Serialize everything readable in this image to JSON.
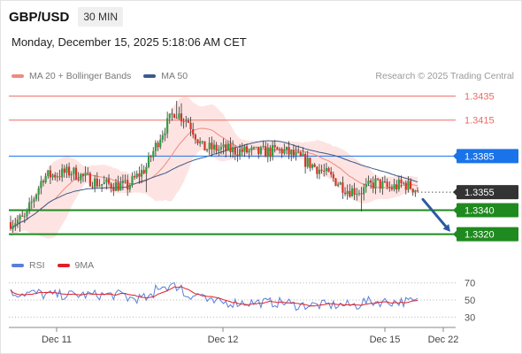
{
  "header": {
    "symbol": "GBP/USD",
    "timeframe": "30 MIN"
  },
  "timestamp": "Monday, December 15, 2025 5:18:06 AM CET",
  "credit": "Research © 2025 Trading Central",
  "legend": {
    "bollinger": {
      "label": "MA 20 + Bollinger Bands",
      "color": "#ef8a80"
    },
    "ma50": {
      "label": "MA 50",
      "color": "#3d5a8c"
    },
    "rsi": {
      "label": "RSI",
      "color": "#5b7fd6"
    },
    "rsi_ma": {
      "label": "9MA",
      "color": "#e0202a"
    }
  },
  "colors": {
    "up": "#2f9e44",
    "down": "#d73527",
    "resistance": "#ee6b63",
    "pivot": "#1a73e8",
    "support": "#1f8a1f",
    "current": "#333333",
    "arrow": "#2c5aa0",
    "band": "#fde4e2"
  },
  "chart_data": [
    {
      "type": "candlestick",
      "title": "GBP/USD 30 MIN",
      "x_labels": [
        "Dec 11",
        "Dec 12",
        "Dec 15",
        "Dec 22"
      ],
      "ylim": [
        1.3305,
        1.3445
      ],
      "levels": [
        {
          "value": 1.3435,
          "label": "1.3435",
          "kind": "resistance"
        },
        {
          "value": 1.3415,
          "label": "1.3415",
          "kind": "resistance"
        },
        {
          "value": 1.3385,
          "label": "1.3385",
          "kind": "pivot"
        },
        {
          "value": 1.3355,
          "label": "1.3355",
          "kind": "current"
        },
        {
          "value": 1.334,
          "label": "1.3340",
          "kind": "support"
        },
        {
          "value": 1.332,
          "label": "1.3320",
          "kind": "support"
        }
      ],
      "forecast": {
        "from": 1.3349,
        "to": 1.3322,
        "direction": "down"
      },
      "series": [
        {
          "name": "MA 20 + Bollinger Bands"
        },
        {
          "name": "MA 50"
        }
      ]
    },
    {
      "type": "line",
      "title": "RSI",
      "ylim": [
        22,
        78
      ],
      "y_ticks": [
        30,
        50,
        70
      ],
      "series": [
        {
          "name": "RSI"
        },
        {
          "name": "9MA"
        }
      ]
    }
  ]
}
